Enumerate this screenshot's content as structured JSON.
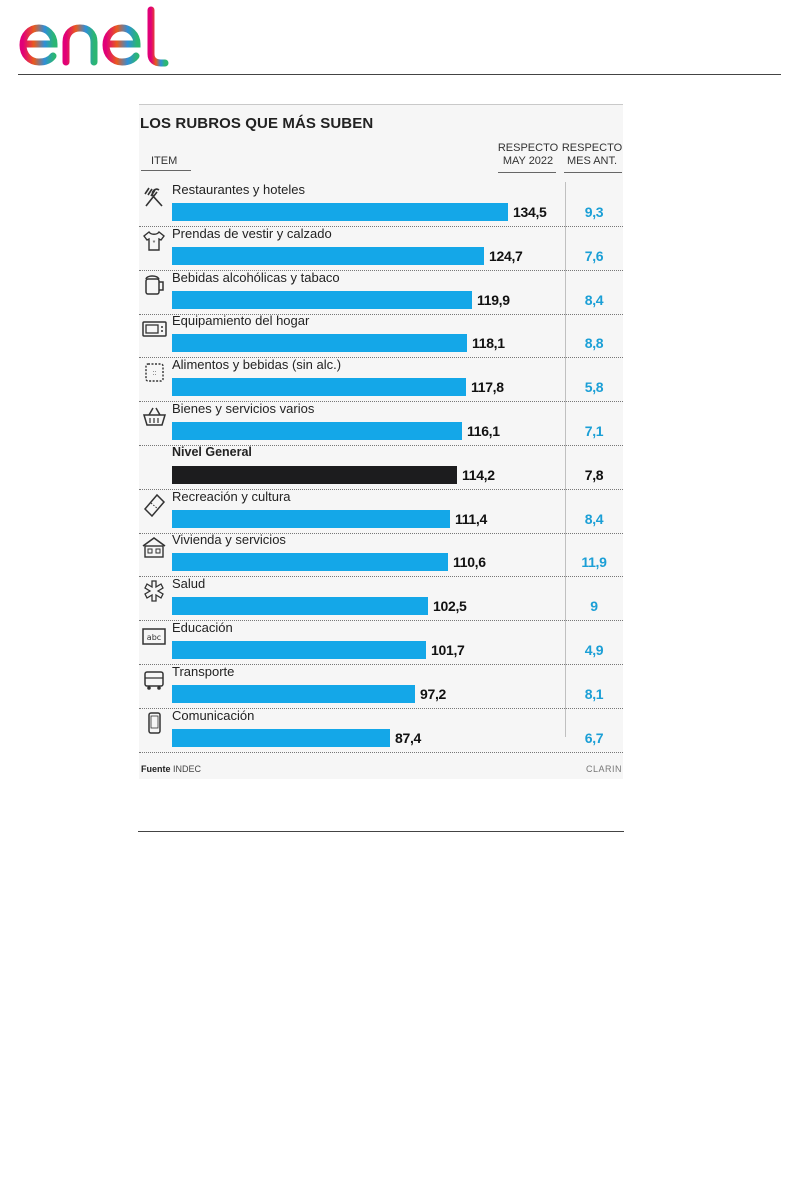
{
  "logo": {
    "text": "enel",
    "colors": [
      "#e10078",
      "#e85b1e",
      "#2f8fd8",
      "#2bb673"
    ]
  },
  "header": {
    "title": "LOS RUBROS QUE MÁS SUBEN",
    "col_item": "ITEM",
    "col_may_line1": "RESPECTO",
    "col_may_line2": "MAY 2022",
    "col_mes_line1": "RESPECTO",
    "col_mes_line2": "MES ANT."
  },
  "footer": {
    "source_label": "Fuente",
    "source": "INDEC",
    "brand": "CLARIN"
  },
  "colors": {
    "bar": "#14a7e8",
    "bar_general": "#1c1c1e",
    "month_value": "#1b9fd6",
    "month_value_general": "#111111"
  },
  "chart_data": {
    "type": "bar",
    "title": "LOS RUBROS QUE MÁS SUBEN",
    "orientation": "horizontal",
    "categories": [
      "Restaurantes y hoteles",
      "Prendas de vestir y calzado",
      "Bebidas alcohólicas y tabaco",
      "Equipamiento del hogar",
      "Alimentos y bebidas (sin alc.)",
      "Bienes y servicios varios",
      "Nivel General",
      "Recreación y cultura",
      "Vivienda y servicios",
      "Salud",
      "Educación",
      "Transporte",
      "Comunicación"
    ],
    "icons": [
      "fork-knife-icon",
      "tshirt-icon",
      "beer-mug-icon",
      "microwave-icon",
      "food-package-icon",
      "basket-icon",
      "",
      "ticket-icon",
      "house-icon",
      "medical-star-icon",
      "abc-board-icon",
      "bus-icon",
      "phone-icon"
    ],
    "series": [
      {
        "name": "RESPECTO MAY 2022",
        "values": [
          "134,5",
          "124,7",
          "119,9",
          "118,1",
          "117,8",
          "116,1",
          "114,2",
          "111,4",
          "110,6",
          "102,5",
          "101,7",
          "97,2",
          "87,4"
        ],
        "numeric": [
          134.5,
          124.7,
          119.9,
          118.1,
          117.8,
          116.1,
          114.2,
          111.4,
          110.6,
          102.5,
          101.7,
          97.2,
          87.4
        ]
      },
      {
        "name": "RESPECTO MES ANT.",
        "values": [
          "9,3",
          "7,6",
          "8,4",
          "8,8",
          "5,8",
          "7,1",
          "7,8",
          "8,4",
          "11,9",
          "9",
          "4,9",
          "8,1",
          "6,7"
        ],
        "numeric": [
          9.3,
          7.6,
          8.4,
          8.8,
          5.8,
          7.1,
          7.8,
          8.4,
          11.9,
          9,
          4.9,
          8.1,
          6.7
        ]
      }
    ],
    "highlight_index": 6,
    "xlim": [
      0,
      134.5
    ]
  }
}
